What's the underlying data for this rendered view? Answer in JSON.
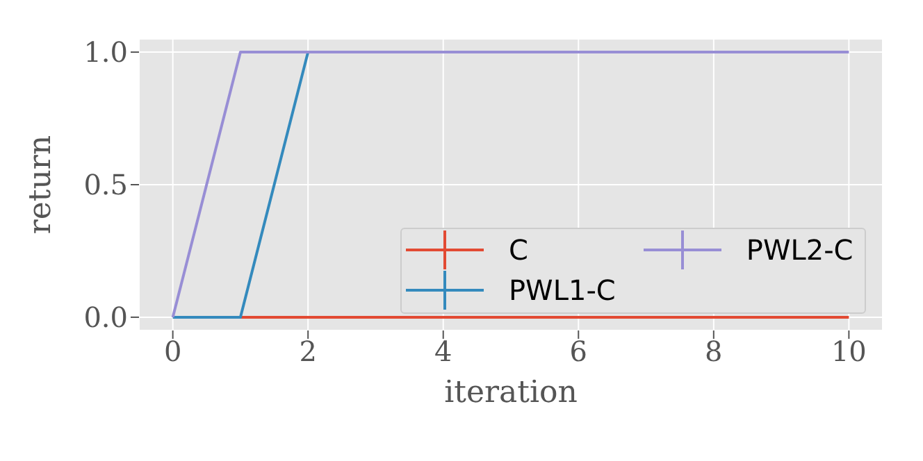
{
  "chart_data": {
    "type": "line",
    "xlabel": "iteration",
    "ylabel": "return",
    "x": [
      0,
      1,
      2,
      3,
      4,
      5,
      6,
      7,
      8,
      9,
      10
    ],
    "series": [
      {
        "name": "C",
        "color": "#e24a33",
        "values": [
          null,
          0,
          0,
          0,
          0,
          0,
          0,
          0,
          0,
          0,
          0
        ]
      },
      {
        "name": "PWL1-C",
        "color": "#348abd",
        "values": [
          0,
          0,
          1,
          null,
          null,
          null,
          null,
          null,
          null,
          null,
          null
        ]
      },
      {
        "name": "PWL2-C",
        "color": "#988ed5",
        "values": [
          0,
          1,
          1,
          1,
          1,
          1,
          1,
          1,
          1,
          1,
          1
        ]
      }
    ],
    "xlim": [
      -0.5,
      10.5
    ],
    "ylim": [
      -0.05,
      1.05
    ],
    "xticks": [
      0,
      2,
      4,
      6,
      8,
      10
    ],
    "yticks": [
      {
        "value": 0,
        "label": "0.0"
      },
      {
        "value": 0.5,
        "label": "0.5"
      },
      {
        "value": 1,
        "label": "1.0"
      }
    ],
    "grid": true,
    "legend": "bottom right",
    "marker": "none",
    "line_style": "solid"
  }
}
